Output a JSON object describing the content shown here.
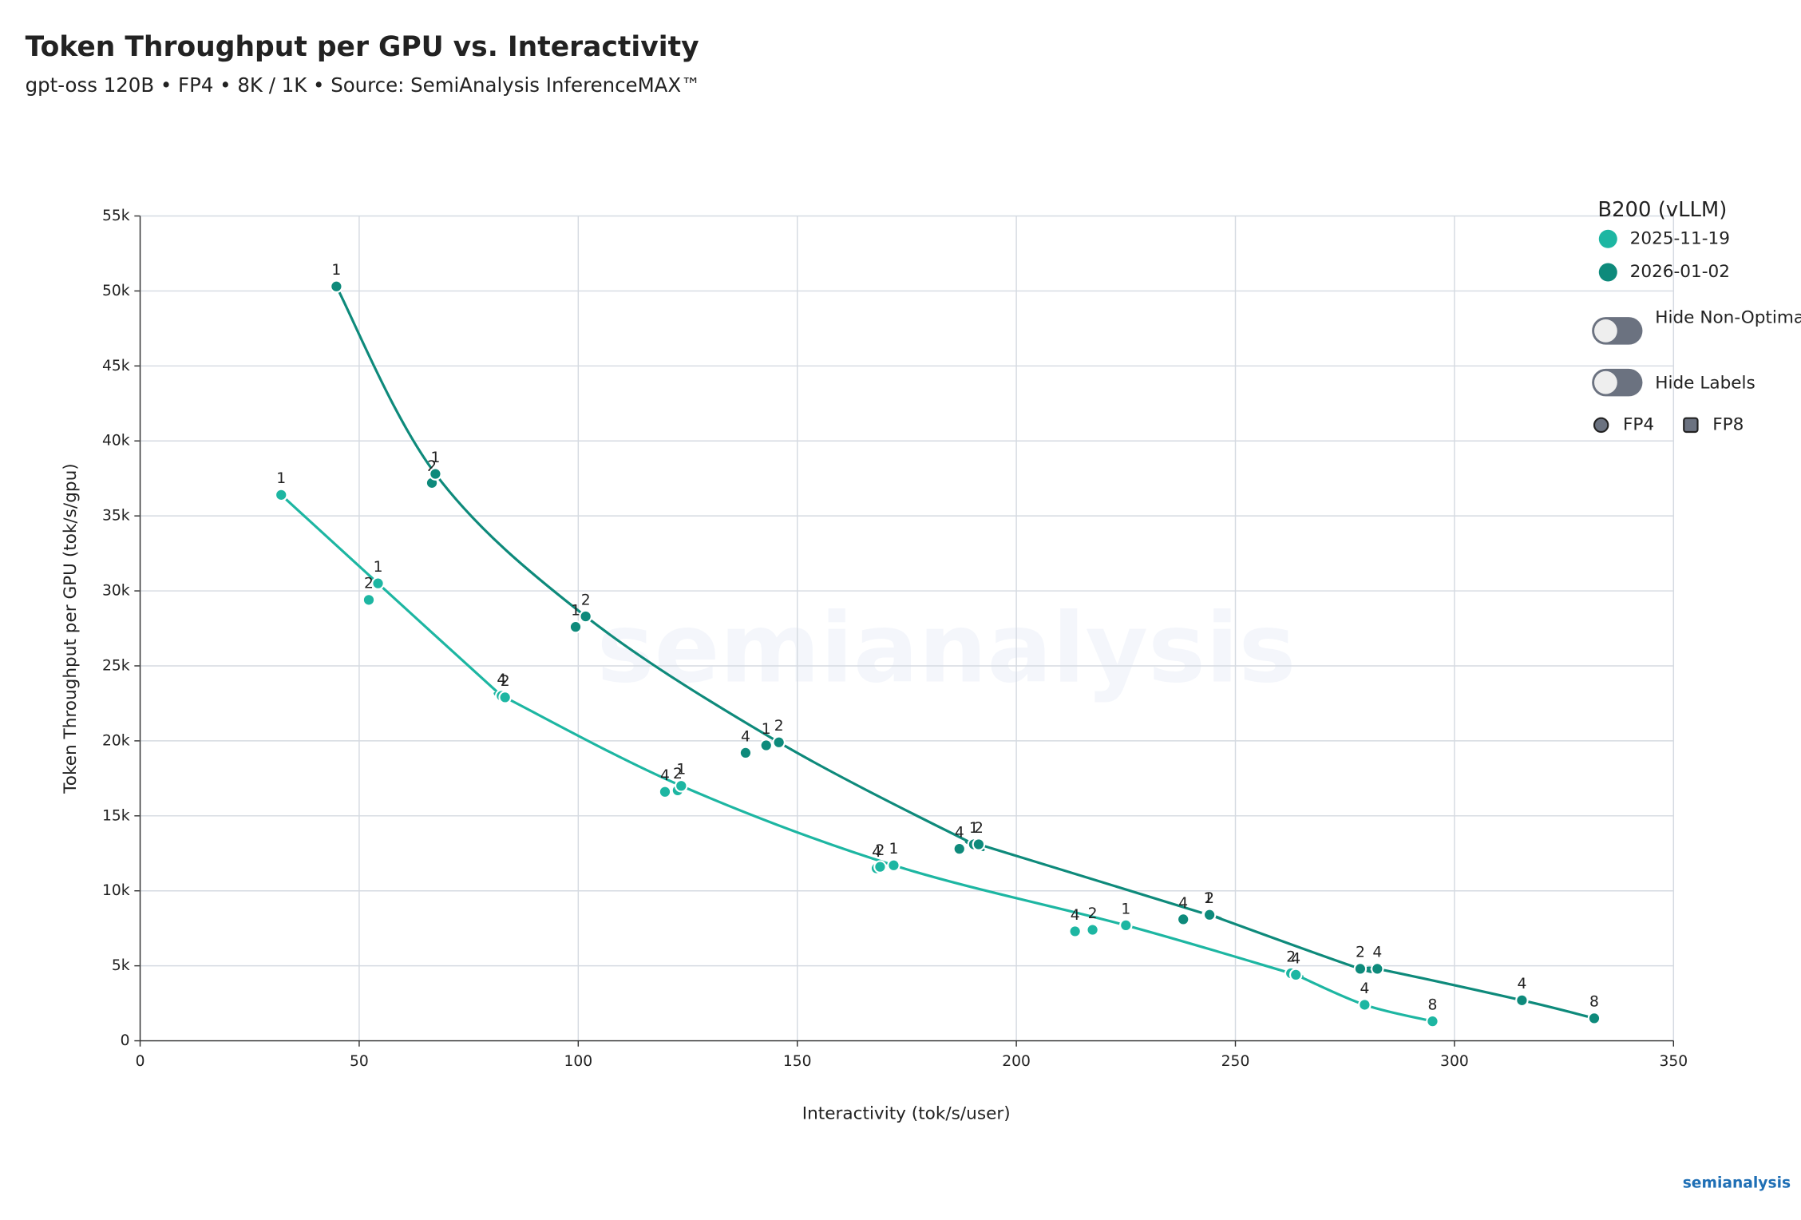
{
  "chart_data": {
    "type": "scatter",
    "title": "Token Throughput per GPU vs. Interactivity",
    "subtitle": "gpt-oss 120B • FP4 • 8K / 1K • Source: SemiAnalysis InferenceMAX™",
    "x_label": "Interactivity (tok/s/user)",
    "y_label": "Token Throughput per GPU (tok/s/gpu)",
    "xlim": [
      0,
      350
    ],
    "xticks": [
      0,
      50,
      100,
      150,
      200,
      250,
      300,
      350
    ],
    "ylim": [
      0,
      55000
    ],
    "yticks": [
      {
        "value": 0,
        "label": "0"
      },
      {
        "value": 5000,
        "label": "5k"
      },
      {
        "value": 10000,
        "label": "10k"
      },
      {
        "value": 15000,
        "label": "15k"
      },
      {
        "value": 20000,
        "label": "20k"
      },
      {
        "value": 25000,
        "label": "25k"
      },
      {
        "value": 30000,
        "label": "30k"
      },
      {
        "value": 35000,
        "label": "35k"
      },
      {
        "value": 40000,
        "label": "40k"
      },
      {
        "value": 45000,
        "label": "45k"
      },
      {
        "value": 50000,
        "label": "50k"
      },
      {
        "value": 55000,
        "label": "55k"
      }
    ],
    "grid": true,
    "legend_title": "B200 (vLLM)",
    "series": [
      {
        "name": "2025-11-19",
        "color": "#1db6a2",
        "x": [
          32.2,
          52.2,
          54.3,
          82.5,
          83.3,
          119.8,
          122.7,
          123.5,
          168.1,
          168.9,
          172.0,
          213.4,
          217.4,
          225.0,
          262.7,
          263.8,
          279.5,
          295.0
        ],
        "values": [
          36400,
          29400,
          30500,
          23000,
          22900,
          16600,
          16700,
          17000,
          11500,
          11600,
          11700,
          7300,
          7400,
          7700,
          4500,
          4400,
          2400,
          1300
        ],
        "point_labels": [
          "1",
          "2",
          "1",
          "4",
          "2",
          "4",
          "2",
          "1",
          "4",
          "2",
          "1",
          "4",
          "2",
          "1",
          "2",
          "4",
          "4",
          "8"
        ]
      },
      {
        "name": "2026-01-02",
        "color": "#0e8a7b",
        "x": [
          44.8,
          66.6,
          67.4,
          99.4,
          101.7,
          138.2,
          142.9,
          145.8,
          187.0,
          190.3,
          191.4,
          238.1,
          243.8,
          244.1,
          278.5,
          282.4,
          315.4,
          331.9
        ],
        "values": [
          50300,
          37200,
          37800,
          27600,
          28300,
          19200,
          19700,
          19900,
          12800,
          13100,
          13100,
          8100,
          8400,
          8400,
          4800,
          4800,
          2700,
          1500
        ],
        "point_labels": [
          "1",
          "2",
          "1",
          "1",
          "2",
          "4",
          "1",
          "2",
          "4",
          "1",
          "2",
          "4",
          "1",
          "2",
          "2",
          "4",
          "4",
          "8"
        ]
      }
    ],
    "toggles": [
      "Hide Non-Optimal",
      "Hide Labels"
    ],
    "precision_legend": [
      "FP4",
      "FP8"
    ],
    "brand": "semianalysis"
  }
}
